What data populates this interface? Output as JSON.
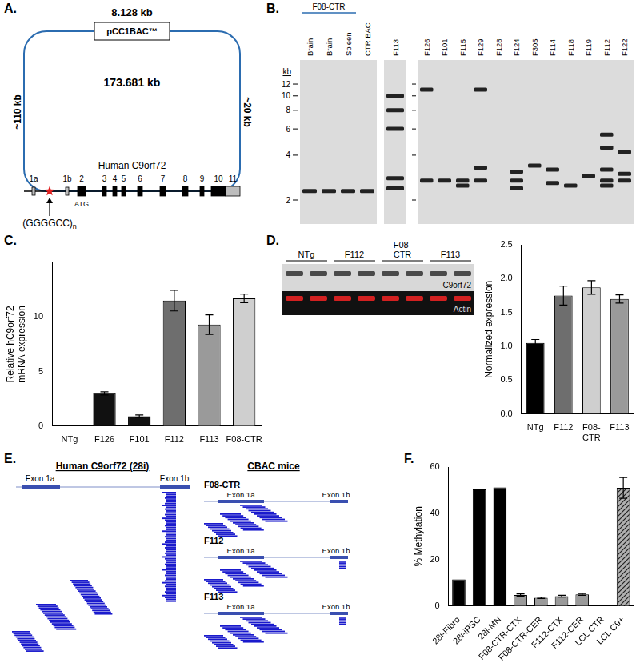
{
  "panel_labels": [
    "A.",
    "B.",
    "C.",
    "D.",
    "E.",
    "F."
  ],
  "panel_A": {
    "backbone_size": "8.128 kb",
    "backbone": "pCC1BAC™",
    "bac_size": "173.681 kb",
    "left_flank": "~110 kb",
    "right_flank": "~20 kb",
    "gene": "Human C9orf72",
    "exons": [
      "1a",
      "1b",
      "2",
      "3",
      "4",
      "5",
      "6",
      "7",
      "8",
      "9",
      "10",
      "11"
    ],
    "start_codon": "ATG",
    "repeat": "(GGGGCC)",
    "repeat_subscript": "n"
  },
  "panel_B": {
    "group_label": "F08-CTR",
    "size_unit": "kb",
    "size_marks": [
      12,
      10,
      8,
      6,
      4,
      2
    ],
    "gels": [
      {
        "lanes": [
          "Brain",
          "Brain",
          "Spleen",
          "CTR BAC"
        ],
        "bands_kb": [
          [
            2.3
          ],
          [
            2.3
          ],
          [
            2.3
          ],
          [
            2.3
          ]
        ]
      },
      {
        "lanes": [
          "F113"
        ],
        "bands_kb": [
          [
            10,
            8,
            6,
            2.8,
            2.4
          ]
        ]
      },
      {
        "lanes": [
          "F126",
          "F101",
          "F115",
          "F129",
          "F128",
          "F124",
          "F305",
          "F114",
          "F118",
          "F119",
          "F112",
          "F122"
        ],
        "bands_kb": [
          [
            11,
            2.7
          ],
          [
            2.7
          ],
          [
            2.7,
            2.5
          ],
          [
            11,
            3.3,
            2.7
          ],
          [],
          [
            3.1,
            2.7,
            2.4
          ],
          [
            3.4
          ],
          [
            3.2,
            2.6
          ],
          [
            2.5
          ],
          [
            2.9
          ],
          [
            5.5,
            4.5,
            3.2,
            2.7,
            2.5
          ],
          [
            4.2,
            3.0,
            2.7
          ]
        ]
      }
    ]
  },
  "panel_D_blot": {
    "groups": [
      "NTg",
      "F112",
      [
        "F08-",
        "CTR"
      ],
      "F113"
    ],
    "rows": [
      "C9orf72",
      "Actin"
    ]
  },
  "panel_E": {
    "human": {
      "title": "Human C9orf72 (28i)",
      "exons": [
        "Exon 1a",
        "Exon 1b"
      ]
    },
    "mice": {
      "title": "CBAC mice",
      "samples": [
        "F08-CTR",
        "F112",
        "F113"
      ],
      "exons": [
        "Exon 1a",
        "Exon 1b"
      ]
    }
  },
  "chart_data": [
    {
      "type": "bar",
      "categories": [
        "NTg",
        "F126",
        "F101",
        "F112",
        "F113",
        "F08-CTR"
      ],
      "values": [
        0.05,
        3.0,
        0.9,
        11.5,
        9.3,
        11.7
      ],
      "errors": [
        null,
        0.15,
        0.12,
        0.95,
        0.9,
        0.4
      ],
      "colors": [
        "#000000",
        "#111111",
        "#111111",
        "#6e6e6e",
        "#9a9a9a",
        "#cfcfcf"
      ],
      "y_label": [
        "Relative hC9orf72",
        "mRNA expression"
      ],
      "ylim": [
        0,
        15
      ],
      "yticks": [
        0,
        5,
        10
      ],
      "grid": false
    },
    {
      "type": "bar",
      "categories": [
        "NTg",
        "F112",
        [
          "F08-",
          "CTR"
        ],
        "F113"
      ],
      "values": [
        1.05,
        1.75,
        1.87,
        1.7
      ],
      "errors": [
        0.05,
        0.14,
        0.1,
        0.06
      ],
      "colors": [
        "#000000",
        "#6e6e6e",
        "#cfcfcf",
        "#9a9a9a"
      ],
      "y_label": "Normalized expression",
      "ylim": [
        0,
        2.5
      ],
      "yticks": [
        {
          "value": 0,
          "label": "0.0"
        },
        {
          "value": 0.5,
          "label": "0.5"
        },
        {
          "value": 1,
          "label": "1.0"
        },
        {
          "value": 1.5,
          "label": "1.5"
        },
        {
          "value": 2,
          "label": "2.0"
        },
        {
          "value": 2.5,
          "label": "2.5"
        }
      ],
      "grid": false
    },
    {
      "type": "bar",
      "categories": [
        "28i-Fibro",
        "28i-iPSC",
        "28i-MN",
        "F08-CTR-CTX",
        "F08-CTR-CER",
        "F112-CTX",
        "F112-CER",
        "LCL CTR",
        "LCL C9+"
      ],
      "values": [
        11.5,
        50.3,
        51.2,
        4.7,
        3.5,
        4.2,
        5.0,
        0.3,
        51.0
      ],
      "errors": [
        null,
        null,
        null,
        0.5,
        0.3,
        0.4,
        0.4,
        null,
        4.5
      ],
      "colors": [
        "#000000",
        "#000000",
        "#000000",
        "#9a9a9a",
        "#9a9a9a",
        "#9a9a9a",
        "#9a9a9a",
        "#000000",
        "#9a9a9a"
      ],
      "y_label": "% Methylation",
      "ylim": [
        0,
        60
      ],
      "yticks": [
        0,
        20,
        40,
        60
      ],
      "grid": false
    }
  ]
}
